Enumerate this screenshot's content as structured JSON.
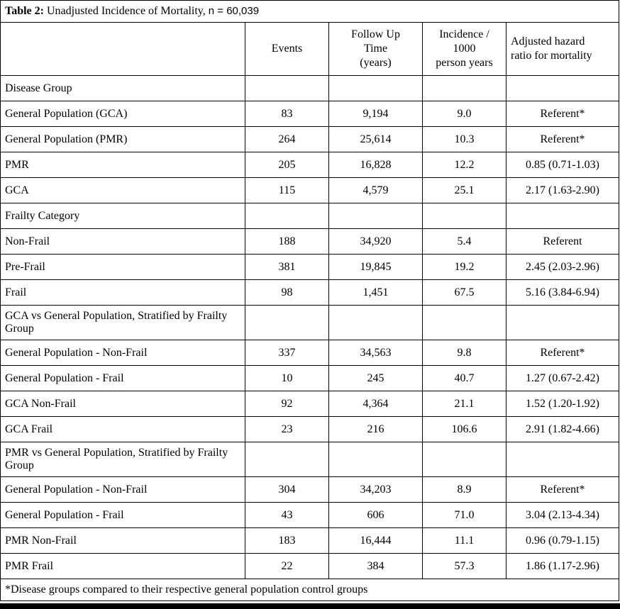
{
  "page": {
    "title_prefix": "Table 2:",
    "title_main": " Unadjusted Incidence of Mortality, ",
    "title_sample": "n = 60,039",
    "footnote": "*Disease groups compared to their respective general population control groups"
  },
  "table": {
    "headers": {
      "label": "",
      "events": "Events",
      "follow_up": "Follow Up\nTime\n(years)",
      "incidence": "Incidence /\n1000\nperson years",
      "hazard": "Adjusted hazard\nratio for mortality"
    },
    "rows": [
      {
        "type": "section",
        "label": "Disease Group",
        "events": "",
        "follow_up": "",
        "incidence": "",
        "hazard": ""
      },
      {
        "type": "data",
        "label": "General Population (GCA)",
        "events": "83",
        "follow_up": "9,194",
        "incidence": "9.0",
        "hazard": "Referent*"
      },
      {
        "type": "data",
        "label": "General Population (PMR)",
        "events": "264",
        "follow_up": "25,614",
        "incidence": "10.3",
        "hazard": "Referent*"
      },
      {
        "type": "data",
        "label": "PMR",
        "events": "205",
        "follow_up": "16,828",
        "incidence": "12.2",
        "hazard": "0.85 (0.71-1.03)"
      },
      {
        "type": "data",
        "label": "GCA",
        "events": "115",
        "follow_up": "4,579",
        "incidence": "25.1",
        "hazard": "2.17 (1.63-2.90)"
      },
      {
        "type": "section",
        "label": "Frailty Category",
        "events": "",
        "follow_up": "",
        "incidence": "",
        "hazard": ""
      },
      {
        "type": "data",
        "label": "Non-Frail",
        "events": "188",
        "follow_up": "34,920",
        "incidence": "5.4",
        "hazard": "Referent"
      },
      {
        "type": "data",
        "label": "Pre-Frail",
        "events": "381",
        "follow_up": "19,845",
        "incidence": "19.2",
        "hazard": "2.45 (2.03-2.96)"
      },
      {
        "type": "data",
        "label": "Frail",
        "events": "98",
        "follow_up": "1,451",
        "incidence": "67.5",
        "hazard": "5.16 (3.84-6.94)"
      },
      {
        "type": "section",
        "label": "GCA vs General Population, Stratified by Frailty Group",
        "events": "",
        "follow_up": "",
        "incidence": "",
        "hazard": ""
      },
      {
        "type": "data",
        "label": "General Population - Non-Frail",
        "events": "337",
        "follow_up": "34,563",
        "incidence": "9.8",
        "hazard": "Referent*"
      },
      {
        "type": "data",
        "label": "General Population - Frail",
        "events": "10",
        "follow_up": "245",
        "incidence": "40.7",
        "hazard": "1.27 (0.67-2.42)"
      },
      {
        "type": "data",
        "label": "GCA Non-Frail",
        "events": "92",
        "follow_up": "4,364",
        "incidence": "21.1",
        "hazard": "1.52 (1.20-1.92)"
      },
      {
        "type": "data",
        "label": "GCA Frail",
        "events": "23",
        "follow_up": "216",
        "incidence": "106.6",
        "hazard": "2.91 (1.82-4.66)"
      },
      {
        "type": "section",
        "label": "PMR vs General Population, Stratified by Frailty Group",
        "events": "",
        "follow_up": "",
        "incidence": "",
        "hazard": ""
      },
      {
        "type": "data",
        "label": "General Population - Non-Frail",
        "events": "304",
        "follow_up": "34,203",
        "incidence": "8.9",
        "hazard": "Referent*"
      },
      {
        "type": "data",
        "label": "General Population - Frail",
        "events": "43",
        "follow_up": "606",
        "incidence": "71.0",
        "hazard": "3.04 (2.13-4.34)"
      },
      {
        "type": "data",
        "label": "PMR Non-Frail",
        "events": "183",
        "follow_up": "16,444",
        "incidence": "11.1",
        "hazard": "0.96 (0.79-1.15)"
      },
      {
        "type": "data",
        "label": "PMR Frail",
        "events": "22",
        "follow_up": "384",
        "incidence": "57.3",
        "hazard": "1.86 (1.17-2.96)"
      }
    ]
  }
}
